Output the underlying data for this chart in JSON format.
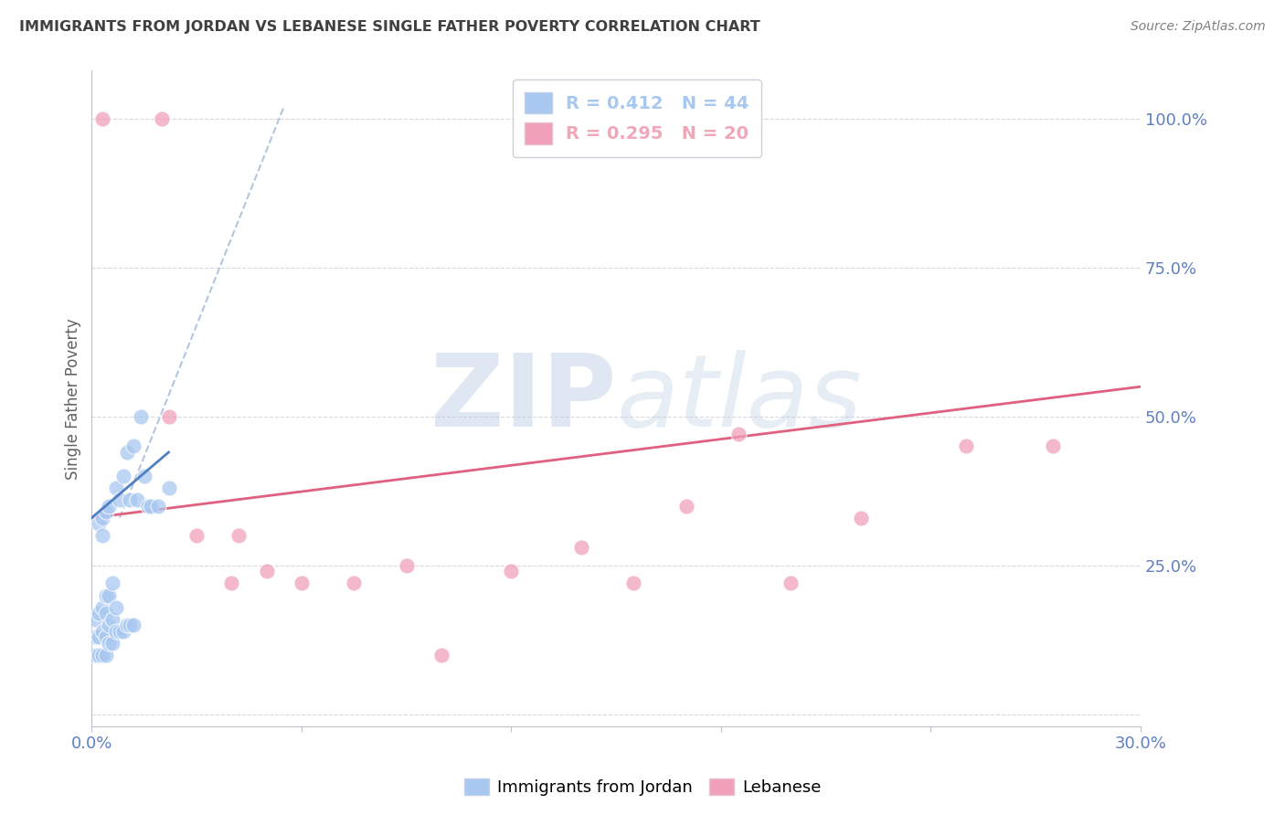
{
  "title": "IMMIGRANTS FROM JORDAN VS LEBANESE SINGLE FATHER POVERTY CORRELATION CHART",
  "source": "Source: ZipAtlas.com",
  "ylabel": "Single Father Poverty",
  "xlim": [
    0.0,
    0.3
  ],
  "ylim": [
    -0.02,
    1.08
  ],
  "y_ticks": [
    0.0,
    0.25,
    0.5,
    0.75,
    1.0
  ],
  "y_tick_labels": [
    "",
    "25.0%",
    "50.0%",
    "75.0%",
    "100.0%"
  ],
  "legend_entries": [
    {
      "label": "R = 0.412   N = 44",
      "color": "#a8c8f0"
    },
    {
      "label": "R = 0.295   N = 20",
      "color": "#f0a8b8"
    }
  ],
  "watermark_zip": "ZIP",
  "watermark_atlas": "atlas",
  "watermark_color_zip": "#b8cce4",
  "watermark_color_atlas": "#b8cce4",
  "legend_labels_bottom": [
    "Immigrants from Jordan",
    "Lebanese"
  ],
  "jordan_scatter_x": [
    0.001,
    0.001,
    0.001,
    0.002,
    0.002,
    0.002,
    0.002,
    0.003,
    0.003,
    0.003,
    0.003,
    0.003,
    0.004,
    0.004,
    0.004,
    0.004,
    0.004,
    0.005,
    0.005,
    0.005,
    0.005,
    0.006,
    0.006,
    0.006,
    0.007,
    0.007,
    0.007,
    0.008,
    0.008,
    0.009,
    0.009,
    0.01,
    0.01,
    0.011,
    0.011,
    0.012,
    0.012,
    0.013,
    0.014,
    0.015,
    0.016,
    0.017,
    0.019,
    0.022
  ],
  "jordan_scatter_y": [
    0.1,
    0.13,
    0.16,
    0.1,
    0.13,
    0.17,
    0.32,
    0.1,
    0.14,
    0.18,
    0.3,
    0.33,
    0.1,
    0.13,
    0.17,
    0.2,
    0.34,
    0.12,
    0.15,
    0.2,
    0.35,
    0.12,
    0.16,
    0.22,
    0.14,
    0.18,
    0.38,
    0.14,
    0.36,
    0.14,
    0.4,
    0.15,
    0.44,
    0.15,
    0.36,
    0.15,
    0.45,
    0.36,
    0.5,
    0.4,
    0.35,
    0.35,
    0.35,
    0.38
  ],
  "lebanese_scatter_x": [
    0.003,
    0.02,
    0.022,
    0.03,
    0.04,
    0.042,
    0.05,
    0.06,
    0.075,
    0.09,
    0.1,
    0.12,
    0.14,
    0.155,
    0.17,
    0.185,
    0.2,
    0.22,
    0.25,
    0.275
  ],
  "lebanese_scatter_y": [
    1.0,
    1.0,
    0.5,
    0.3,
    0.22,
    0.3,
    0.24,
    0.22,
    0.22,
    0.25,
    0.1,
    0.24,
    0.28,
    0.22,
    0.35,
    0.47,
    0.22,
    0.33,
    0.45,
    0.45
  ],
  "jordan_dashed_line_x": [
    0.008,
    0.055
  ],
  "jordan_dashed_line_y": [
    0.33,
    1.02
  ],
  "jordan_solid_line_x": [
    0.0,
    0.022
  ],
  "jordan_solid_line_y": [
    0.33,
    0.44
  ],
  "pink_line_x": [
    0.0,
    0.3
  ],
  "pink_line_y": [
    0.33,
    0.55
  ],
  "jordan_color": "#a8c8f0",
  "lebanese_color": "#f0a0b8",
  "jordan_dashed_color": "#a0b8d8",
  "jordan_solid_color": "#5080c0",
  "lebanese_line_color": "#e06080",
  "bg_color": "#ffffff",
  "title_color": "#404040",
  "right_tick_color": "#6080c0",
  "grid_color": "#d8d8e0"
}
